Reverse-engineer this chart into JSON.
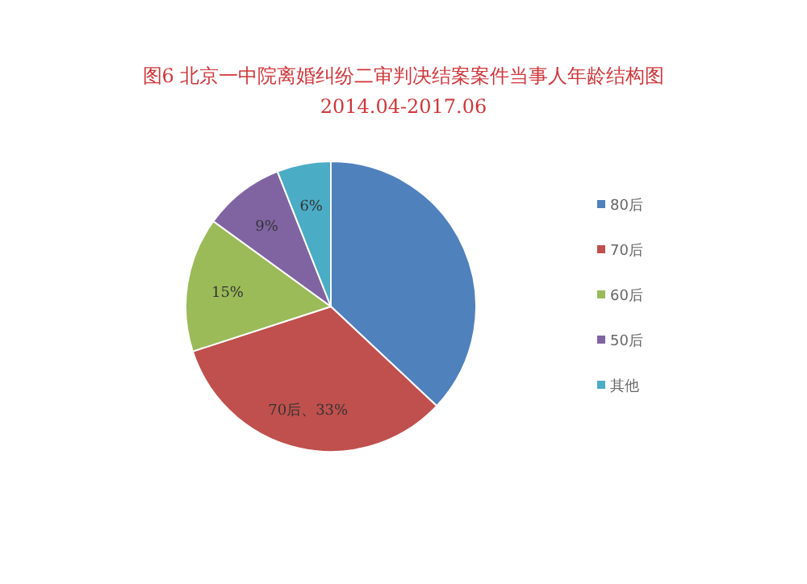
{
  "chart_data": {
    "type": "pie",
    "title": "图6 北京一中院离婚纠纷二审判决结案案件当事人年龄结构图",
    "subtitle": "2014.04-2017.06",
    "categories": [
      "80后",
      "70后",
      "60后",
      "50后",
      "其他"
    ],
    "values": [
      37,
      33,
      15,
      9,
      6
    ],
    "colors": [
      "#4f81bd",
      "#c0504d",
      "#9bbb59",
      "#8064a2",
      "#4bacc6"
    ],
    "value_labels": [
      null,
      "70后、33%",
      "15%",
      "9%",
      "6%"
    ],
    "legend": "right"
  }
}
